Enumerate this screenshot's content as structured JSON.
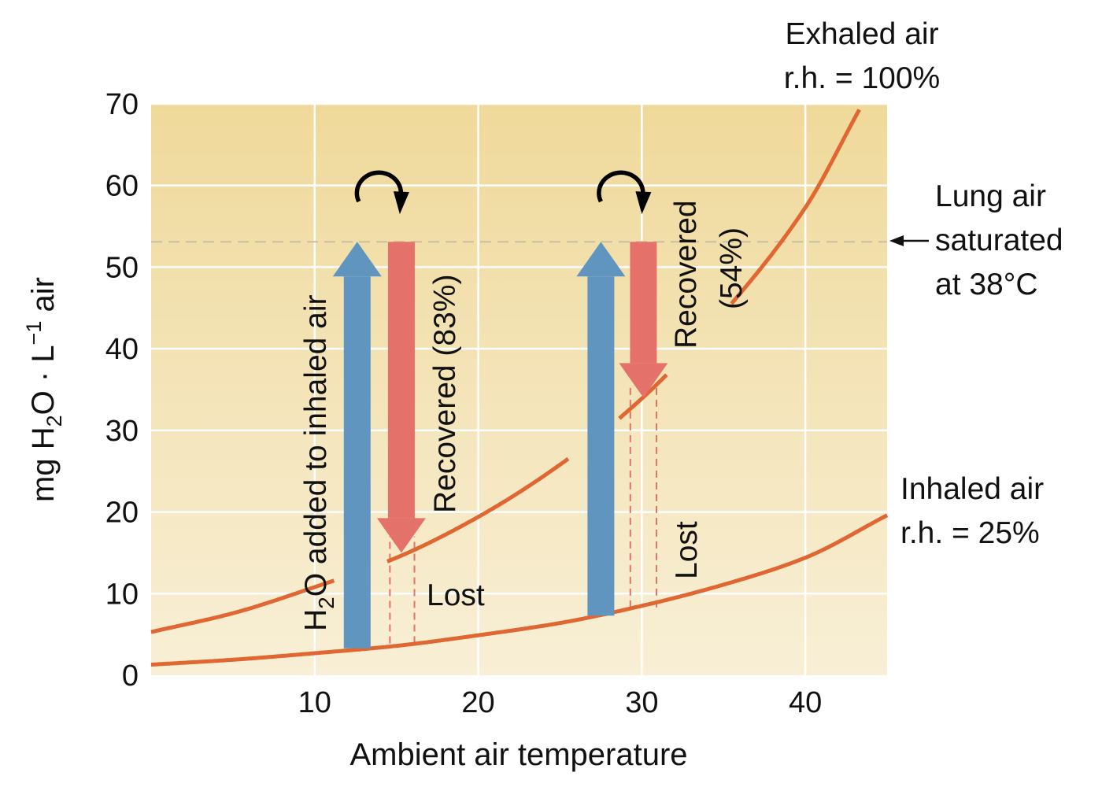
{
  "chart_data": {
    "type": "line",
    "title": "",
    "xlabel": "Ambient air temperature",
    "ylabel_parts": {
      "pre": "mg H",
      "sub": "2",
      "mid": "O · L",
      "sup": "−1",
      "post": " air"
    },
    "xlim": [
      0,
      45
    ],
    "ylim": [
      0,
      70
    ],
    "x_ticks": [
      10,
      20,
      30,
      40
    ],
    "y_ticks": [
      0,
      10,
      20,
      30,
      40,
      50,
      60,
      70
    ],
    "grid": true,
    "series": [
      {
        "name": "Exhaled air r.h. = 100%",
        "color": "#e06632",
        "x": [
          0,
          5,
          10,
          15,
          20,
          25,
          30,
          35,
          40,
          43.3
        ],
        "y": [
          5.3,
          7.6,
          10.8,
          14.4,
          19.4,
          25.8,
          33.9,
          44.4,
          57.3,
          69.3
        ],
        "gaps_x": [
          [
            11.2,
            14.4
          ],
          [
            25.6,
            28.6
          ],
          [
            31.6,
            35.4
          ]
        ]
      },
      {
        "name": "Inhaled air r.h. = 25%",
        "color": "#e06632",
        "x": [
          0,
          5,
          10,
          15,
          20,
          25,
          30,
          35,
          40,
          45
        ],
        "y": [
          1.3,
          1.9,
          2.7,
          3.6,
          4.9,
          6.4,
          8.5,
          11.1,
          14.4,
          19.6
        ]
      }
    ],
    "reference_line": {
      "y": 53.1,
      "style": "dashed",
      "color": "#c9bfa5"
    },
    "arrows": [
      {
        "kind": "added",
        "x": 12.6,
        "from": 3.3,
        "to": 53.1,
        "color": "#6095bf"
      },
      {
        "kind": "recovered",
        "x": 15.3,
        "from": 53.1,
        "to": 15.0,
        "color": "#e5726a"
      },
      {
        "kind": "added",
        "x": 27.5,
        "from": 7.3,
        "to": 53.1,
        "color": "#6095bf"
      },
      {
        "kind": "recovered",
        "x": 30.1,
        "from": 53.1,
        "to": 34.0,
        "color": "#e5726a"
      }
    ],
    "lost_brackets": [
      {
        "x1": 14.6,
        "x2": 16.1,
        "y_low": 3.9,
        "y_high": 17.0,
        "color": "#e5726a"
      },
      {
        "x1": 29.3,
        "x2": 30.9,
        "y_low": 8.3,
        "y_high": 35.5,
        "color": "#e5726a"
      }
    ],
    "cycle_arrows": [
      {
        "x": 14.0,
        "y": 59.0
      },
      {
        "x": 28.8,
        "y": 59.0
      }
    ],
    "annotations": {
      "exhaled_line1": "Exhaled air",
      "exhaled_line2": "r.h. = 100%",
      "lung_line1": "Lung air",
      "lung_line2": "saturated",
      "lung_line3": "at 38°C",
      "inhaled_line1": "Inhaled air",
      "inhaled_line2": "r.h. = 25%",
      "h2o_added": {
        "pre": "H",
        "sub": "2",
        "post": "O added to inhaled air"
      },
      "recovered_1": "Recovered (83%)",
      "recovered_2_line1": "Recovered",
      "recovered_2_line2": "(54%)",
      "lost_1": "Lost",
      "lost_2": "Lost"
    },
    "colors": {
      "bg_top": "#efd99a",
      "bg_bottom": "#f8efd6",
      "curve": "#e06632",
      "added_arrow": "#6095bf",
      "recovered_arrow": "#e5726a"
    }
  }
}
